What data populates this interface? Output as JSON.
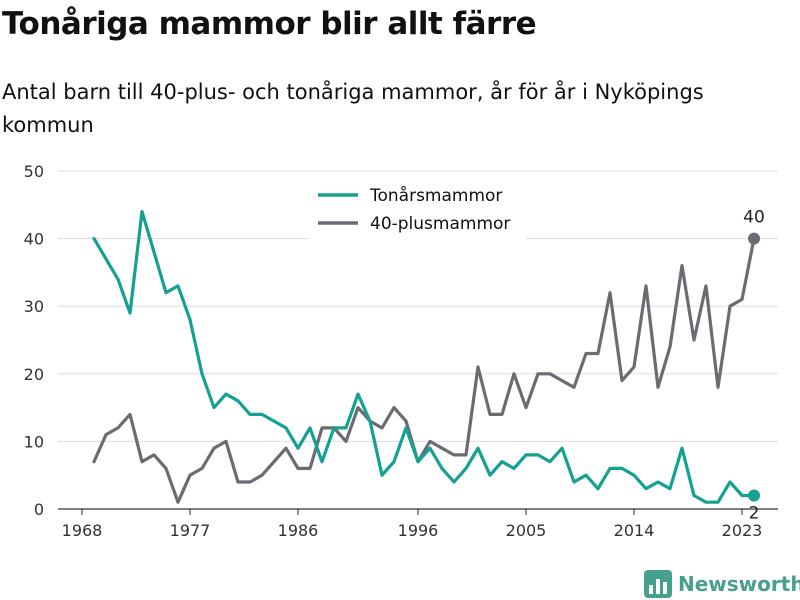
{
  "title": "Tonåriga mammor blir allt färre",
  "subtitle": "Antal barn till 40-plus- och tonåriga mammor, år för år i Nyköpings kommun",
  "brand": {
    "name": "Newsworthy",
    "color": "#46a08e"
  },
  "chart_data": {
    "type": "line",
    "title": "Tonåriga mammor blir allt färre",
    "subtitle": "Antal barn till 40-plus- och tonåriga mammor, år för år i Nyköpings kommun",
    "xlabel": "",
    "ylabel": "",
    "xlim": [
      1966,
      2026
    ],
    "ylim": [
      0,
      50
    ],
    "x_ticks": [
      1968,
      1977,
      1986,
      1996,
      2005,
      2014,
      2023
    ],
    "y_ticks": [
      0,
      10,
      20,
      30,
      40,
      50
    ],
    "grid": "horizontal",
    "legend": "top-center",
    "x": [
      1969,
      1970,
      1971,
      1972,
      1973,
      1974,
      1975,
      1976,
      1977,
      1978,
      1979,
      1980,
      1981,
      1982,
      1983,
      1984,
      1985,
      1986,
      1987,
      1988,
      1989,
      1990,
      1991,
      1992,
      1993,
      1994,
      1995,
      1996,
      1997,
      1998,
      1999,
      2000,
      2001,
      2002,
      2003,
      2004,
      2005,
      2006,
      2007,
      2008,
      2009,
      2010,
      2011,
      2012,
      2013,
      2014,
      2015,
      2016,
      2017,
      2018,
      2019,
      2020,
      2021,
      2022,
      2023,
      2024
    ],
    "series": [
      {
        "name": "Tonårsmammor",
        "color": "#14a092",
        "values": [
          40,
          37,
          34,
          29,
          44,
          38,
          32,
          33,
          28,
          20,
          15,
          17,
          16,
          14,
          14,
          13,
          12,
          9,
          12,
          7,
          12,
          12,
          17,
          13,
          5,
          7,
          12,
          7,
          9,
          6,
          4,
          6,
          9,
          5,
          7,
          6,
          8,
          8,
          7,
          9,
          4,
          5,
          3,
          6,
          6,
          5,
          3,
          4,
          3,
          9,
          2,
          1,
          1,
          4,
          2,
          2
        ],
        "end_label": "2"
      },
      {
        "name": "40-plusmammor",
        "color": "#6b6b73",
        "values": [
          7,
          11,
          12,
          14,
          7,
          8,
          6,
          1,
          5,
          6,
          9,
          10,
          4,
          4,
          5,
          7,
          9,
          6,
          6,
          12,
          12,
          10,
          15,
          13,
          12,
          15,
          13,
          7,
          10,
          9,
          8,
          8,
          21,
          14,
          14,
          20,
          15,
          20,
          20,
          19,
          18,
          23,
          23,
          32,
          19,
          21,
          33,
          18,
          24,
          36,
          25,
          33,
          18,
          30,
          31,
          40
        ],
        "end_label": "40"
      }
    ]
  }
}
